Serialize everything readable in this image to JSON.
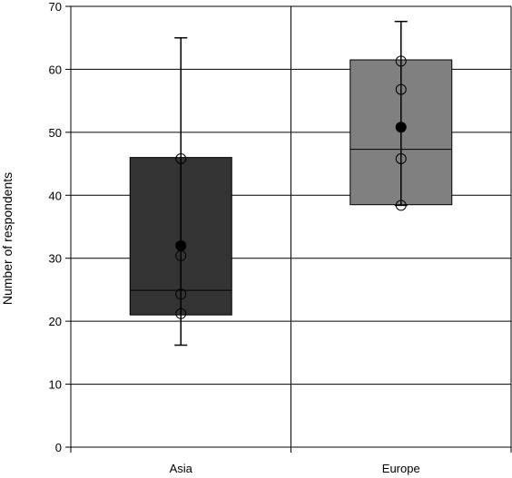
{
  "chart_data": {
    "type": "box",
    "title": "",
    "xlabel": "",
    "ylabel": "Number of respondents",
    "ylim": [
      0,
      70
    ],
    "yticks": [
      0,
      10,
      20,
      30,
      40,
      50,
      60,
      70
    ],
    "grid": true,
    "legend": "none",
    "categories": [
      "Asia",
      "Europe"
    ],
    "boxes": [
      {
        "category": "Asia",
        "whisker_low": 16.2,
        "q1": 21.0,
        "median": 24.9,
        "q3": 46.0,
        "whisker_high": 65.0,
        "mean": 32.0,
        "points": [
          21.2,
          24.3,
          30.4,
          45.8
        ],
        "color": "#333333"
      },
      {
        "category": "Europe",
        "whisker_low": 38.4,
        "q1": 38.5,
        "median": 47.3,
        "q3": 61.5,
        "whisker_high": 67.6,
        "mean": 50.8,
        "points": [
          38.4,
          45.8,
          56.8,
          61.3
        ],
        "color": "#808080"
      }
    ]
  }
}
